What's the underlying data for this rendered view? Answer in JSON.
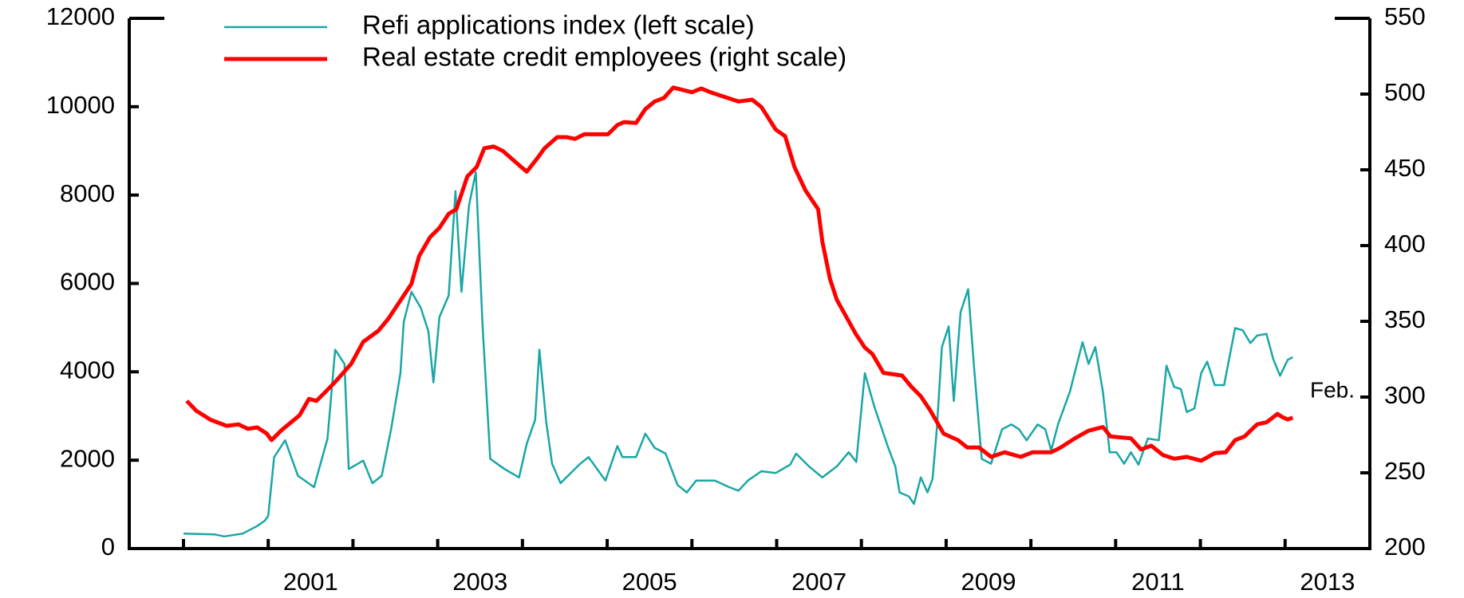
{
  "chart_data": {
    "type": "line",
    "annotation": "Feb.",
    "legend": "upper left",
    "xlim": [
      1999.36,
      2014.0
    ],
    "xticks": [
      {
        "value": 2001.5,
        "label": "2001"
      },
      {
        "value": 2003.5,
        "label": "2003"
      },
      {
        "value": 2005.5,
        "label": "2005"
      },
      {
        "value": 2007.5,
        "label": "2007"
      },
      {
        "value": 2009.5,
        "label": "2009"
      },
      {
        "value": 2011.5,
        "label": "2011"
      },
      {
        "value": 2013.5,
        "label": "2013"
      }
    ],
    "xminor": [
      2000,
      2001,
      2002,
      2003,
      2004,
      2005,
      2006,
      2007,
      2008,
      2009,
      2010,
      2011,
      2012,
      2013
    ],
    "ylim": [
      0,
      12000
    ],
    "yticks": [
      0,
      2000,
      4000,
      6000,
      8000,
      10000,
      12000
    ],
    "y2lim": [
      200,
      550
    ],
    "y2ticks": [
      200,
      250,
      300,
      350,
      400,
      450,
      500,
      550
    ],
    "series": [
      {
        "name": "Refi applications index (left scale)",
        "color": "#1aa6a6",
        "axis": "y",
        "x": [
          2000.0,
          2000.37,
          2000.48,
          2000.7,
          2000.87,
          2000.96,
          2001.0,
          2001.07,
          2001.2,
          2001.35,
          2001.54,
          2001.7,
          2001.79,
          2001.9,
          2001.95,
          2002.12,
          2002.23,
          2002.34,
          2002.45,
          2002.56,
          2002.6,
          2002.69,
          2002.8,
          2002.89,
          2002.95,
          2003.02,
          2003.13,
          2003.21,
          2003.28,
          2003.37,
          2003.45,
          2003.53,
          2003.62,
          2003.79,
          2003.96,
          2004.05,
          2004.15,
          2004.2,
          2004.28,
          2004.35,
          2004.45,
          2004.67,
          2004.78,
          2004.9,
          2004.98,
          2005.12,
          2005.18,
          2005.34,
          2005.45,
          2005.56,
          2005.69,
          2005.83,
          2005.94,
          2006.05,
          2006.27,
          2006.44,
          2006.55,
          2006.66,
          2006.82,
          2006.99,
          2007.16,
          2007.23,
          2007.38,
          2007.54,
          2007.71,
          2007.85,
          2007.94,
          2008.04,
          2008.15,
          2008.31,
          2008.4,
          2008.45,
          2008.56,
          2008.62,
          2008.7,
          2008.78,
          2008.84,
          2008.89,
          2008.95,
          2009.03,
          2009.09,
          2009.17,
          2009.26,
          2009.33,
          2009.42,
          2009.53,
          2009.66,
          2009.77,
          2009.86,
          2009.95,
          2010.08,
          2010.17,
          2010.24,
          2010.32,
          2010.46,
          2010.61,
          2010.68,
          2010.76,
          2010.85,
          2010.93,
          2011.01,
          2011.1,
          2011.18,
          2011.27,
          2011.38,
          2011.51,
          2011.6,
          2011.69,
          2011.77,
          2011.84,
          2011.93,
          2012.01,
          2012.08,
          2012.17,
          2012.28,
          2012.41,
          2012.5,
          2012.59,
          2012.67,
          2012.78,
          2012.86,
          2012.94,
          2013.03,
          2013.09
        ],
        "values": [
          340,
          320,
          275,
          340,
          510,
          630,
          740,
          2070,
          2450,
          1650,
          1390,
          2490,
          4500,
          4180,
          1800,
          1990,
          1480,
          1650,
          2700,
          3970,
          5130,
          5810,
          5450,
          4920,
          3760,
          5240,
          5730,
          8090,
          5810,
          7770,
          8520,
          5030,
          2030,
          1800,
          1610,
          2370,
          2920,
          4500,
          2870,
          1920,
          1480,
          1900,
          2070,
          1750,
          1540,
          2320,
          2070,
          2070,
          2600,
          2280,
          2150,
          1440,
          1270,
          1540,
          1540,
          1390,
          1310,
          1540,
          1750,
          1710,
          1900,
          2150,
          1860,
          1610,
          1860,
          2180,
          1960,
          3970,
          3230,
          2320,
          1860,
          1270,
          1180,
          1010,
          1610,
          1270,
          1580,
          2700,
          4560,
          5030,
          3340,
          5350,
          5870,
          4080,
          2030,
          1920,
          2700,
          2810,
          2700,
          2450,
          2810,
          2700,
          2220,
          2810,
          3550,
          4670,
          4180,
          4560,
          3550,
          2180,
          2180,
          1920,
          2180,
          1900,
          2490,
          2450,
          4140,
          3660,
          3610,
          3090,
          3170,
          3970,
          4230,
          3700,
          3700,
          4990,
          4940,
          4650,
          4820,
          4860,
          4290,
          3910,
          4270,
          4330
        ]
      },
      {
        "name": "Real estate credit employees (right scale)",
        "color": "#ff0000",
        "axis": "y2",
        "x": [
          2000.04,
          2000.15,
          2000.32,
          2000.51,
          2000.65,
          2000.76,
          2000.87,
          2000.98,
          2001.04,
          2001.15,
          2001.37,
          2001.48,
          2001.57,
          2001.68,
          2001.79,
          2001.98,
          2002.12,
          2002.3,
          2002.42,
          2002.58,
          2002.69,
          2002.78,
          2002.91,
          2003.02,
          2003.13,
          2003.22,
          2003.35,
          2003.46,
          2003.55,
          2003.66,
          2003.77,
          2003.96,
          2004.05,
          2004.18,
          2004.26,
          2004.41,
          2004.52,
          2004.62,
          2004.73,
          2005.01,
          2005.12,
          2005.2,
          2005.34,
          2005.45,
          2005.56,
          2005.67,
          2005.78,
          2006.0,
          2006.11,
          2006.22,
          2006.38,
          2006.55,
          2006.71,
          2006.82,
          2006.99,
          2007.1,
          2007.21,
          2007.34,
          2007.49,
          2007.54,
          2007.63,
          2007.71,
          2007.82,
          2007.93,
          2008.04,
          2008.13,
          2008.26,
          2008.48,
          2008.59,
          2008.7,
          2008.81,
          2008.97,
          2009.14,
          2009.25,
          2009.39,
          2009.53,
          2009.69,
          2009.88,
          2010.02,
          2010.24,
          2010.35,
          2010.52,
          2010.68,
          2010.85,
          2010.94,
          2011.18,
          2011.3,
          2011.42,
          2011.56,
          2011.69,
          2011.84,
          2012.01,
          2012.17,
          2012.3,
          2012.41,
          2012.52,
          2012.67,
          2012.78,
          2012.91,
          2012.96,
          2013.03,
          2013.09
        ],
        "values": [
          297.5,
          291,
          285,
          281,
          282,
          279,
          280,
          276,
          271.6,
          277.8,
          288,
          298.8,
          297.5,
          303.7,
          310,
          322,
          336.4,
          343.8,
          351.9,
          365.4,
          374.7,
          393,
          405.6,
          411.7,
          421,
          424,
          445.7,
          451.9,
          464.2,
          465.4,
          462.4,
          453.1,
          448.8,
          458,
          464.2,
          471.6,
          471.6,
          470.4,
          473.5,
          473.5,
          479.6,
          481.5,
          480.9,
          490.1,
          495.1,
          497.5,
          504.3,
          501.2,
          503.7,
          501.2,
          498.2,
          495.1,
          496.3,
          491.4,
          476.5,
          472.2,
          451.9,
          436.4,
          424,
          402.5,
          377.8,
          364.2,
          353.1,
          342,
          332.7,
          328.4,
          316,
          314.2,
          306.8,
          300.6,
          291.4,
          275.9,
          271.6,
          266.7,
          266.7,
          260.5,
          263.6,
          260.5,
          263.6,
          263.6,
          266.7,
          272.8,
          277.8,
          280.2,
          274,
          272.8,
          265.4,
          267.9,
          261.7,
          259.3,
          260.5,
          258,
          263,
          263.6,
          271.6,
          274,
          282,
          283.3,
          288.9,
          287,
          285.2,
          286.4
        ]
      }
    ]
  }
}
